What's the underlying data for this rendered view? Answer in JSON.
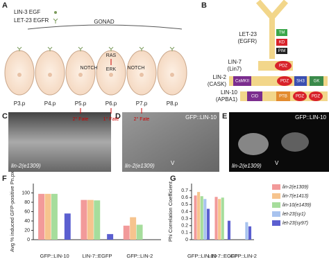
{
  "panel_a": {
    "label": "A",
    "legend": [
      "LIN-3 EGF",
      "LET-23 EGFR"
    ],
    "gonad": "GONAD",
    "cells": [
      "P3.p",
      "P4.p",
      "P5.p",
      "P6.p",
      "P7.p",
      "P8.p"
    ],
    "signals": [
      "NOTCH",
      "RAS",
      "ERK",
      "NOTCH"
    ],
    "fates": [
      "2° Fate",
      "1° Fate",
      "2° Fate"
    ]
  },
  "panel_b": {
    "label": "B",
    "let23": {
      "name": "LET-23",
      "alias": "(EGFR)",
      "domains": [
        "TM",
        "KD",
        "PIM"
      ]
    },
    "lin7": {
      "name": "LIN-7",
      "alias": "(Lin7)",
      "domains": [
        "PDZ"
      ]
    },
    "lin2": {
      "name": "LIN-2",
      "alias": "(CASK)",
      "domains": [
        "CaMKII",
        "PDZ",
        "SH3",
        "GK"
      ]
    },
    "lin10": {
      "name": "LIN-10",
      "alias": "(APBA1)",
      "domains": [
        "CID",
        "PTB",
        "PDZ",
        "PDZ"
      ]
    }
  },
  "panel_c": {
    "label": "C",
    "genotype": "lin-2(e1309)"
  },
  "panel_d": {
    "label": "D",
    "marker": "GFP::LIN-10",
    "cell": "V",
    "genotype": "lin-2(e1309)"
  },
  "panel_e": {
    "label": "E",
    "marker": "GFP::LIN-10",
    "cell": "V",
    "genotype": "lin-2(e1309)"
  },
  "chart_data": [
    {
      "type": "bar",
      "label": "F",
      "ylabel": "Avg % induced GFP-positive Pn.px",
      "categories": [
        "GFP::LIN-10",
        "LIN-7::EGFP",
        "GFP::LIN-2"
      ],
      "series": [
        {
          "name": "lin-2(e1309)",
          "color": "#f29a9a",
          "values": [
            98,
            85,
            30
          ]
        },
        {
          "name": "lin-7(e1413)",
          "color": "#f6c48e",
          "values": [
            98,
            85,
            48
          ]
        },
        {
          "name": "lin-10(e1439)",
          "color": "#a6dd9c",
          "values": [
            98,
            84,
            32
          ]
        },
        {
          "name": "let-23(sy1)",
          "color": "#a8c3ee",
          "values": [
            null,
            null,
            null
          ]
        },
        {
          "name": "let-23(sy97)",
          "color": "#5b5fd0",
          "values": [
            56,
            12,
            null
          ]
        }
      ],
      "ylim": [
        0,
        120
      ],
      "yticks": [
        0,
        20,
        40,
        60,
        80,
        100
      ]
    },
    {
      "type": "bar",
      "label": "G",
      "ylabel": "Phi Correlation Coefficient",
      "categories": [
        "GFP::LIN-10",
        "LIN-7::EGFP",
        "GFP::LIN-2"
      ],
      "series": [
        {
          "name": "lin-2(e1309)",
          "color": "#f29a9a",
          "values": [
            0.63,
            0.61,
            null
          ]
        },
        {
          "name": "lin-7(e1413)",
          "color": "#f6c48e",
          "values": [
            0.68,
            0.58,
            null
          ]
        },
        {
          "name": "lin-10(e1439)",
          "color": "#a6dd9c",
          "values": [
            0.62,
            0.6,
            null
          ]
        },
        {
          "name": "let-23(sy1)",
          "color": "#a8c3ee",
          "values": [
            0.58,
            null,
            0.25
          ]
        },
        {
          "name": "let-23(sy97)",
          "color": "#5b5fd0",
          "values": [
            0.44,
            0.27,
            0.19
          ]
        }
      ],
      "ylim": [
        0,
        0.8
      ],
      "yticks": [
        0,
        0.1,
        0.2,
        0.3,
        0.4,
        0.5,
        0.6,
        0.7
      ],
      "legend": "right"
    }
  ]
}
